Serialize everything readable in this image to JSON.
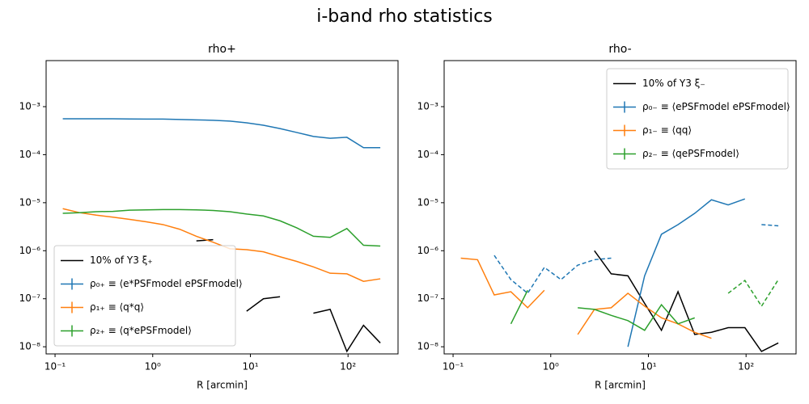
{
  "title": "i-band rho statistics",
  "chart_data": [
    {
      "type": "line",
      "title": "rho+",
      "xlabel": "R [arcmin]",
      "xscale": "log",
      "yscale": "log",
      "xlim": [
        0.081,
        325
      ],
      "ylim": [
        7.1e-09,
        0.0091
      ],
      "xticks": [
        {
          "value": 0.1,
          "label": "10⁻¹"
        },
        {
          "value": 1,
          "label": "10⁰"
        },
        {
          "value": 10,
          "label": "10¹"
        },
        {
          "value": 100,
          "label": "10²"
        }
      ],
      "yticks": [
        {
          "value": 1e-08,
          "label": "10⁻⁸"
        },
        {
          "value": 1e-07,
          "label": "10⁻⁷"
        },
        {
          "value": 1e-06,
          "label": "10⁻⁶"
        },
        {
          "value": 1e-05,
          "label": "10⁻⁵"
        },
        {
          "value": 0.0001,
          "label": "10⁻⁴"
        },
        {
          "value": 0.001,
          "label": "10⁻³"
        }
      ],
      "legend": "lower left",
      "x": [
        0.12,
        0.178,
        0.264,
        0.391,
        0.58,
        0.86,
        1.275,
        1.89,
        2.8,
        4.16,
        6.17,
        9.15,
        13.6,
        20.1,
        29.8,
        44.2,
        65.6,
        97.3,
        144,
        214
      ],
      "series": [
        {
          "name": "10% of Y3 ξ₊",
          "color": "#000000",
          "errorbar": false,
          "values": [
            null,
            null,
            null,
            null,
            null,
            null,
            null,
            null,
            1.6e-06,
            1.7e-06,
            null,
            5.5e-08,
            1e-07,
            1.1e-07,
            null,
            5e-08,
            6e-08,
            8e-09,
            2.8e-08,
            1.2e-08
          ]
        },
        {
          "name": "ρ₀₊ ≡ ⟨e*PSFmodel ePSFmodel⟩",
          "color": "#1f77b4",
          "errorbar": true,
          "values": [
            0.00056,
            0.00056,
            0.00056,
            0.00056,
            0.000555,
            0.00055,
            0.00055,
            0.00054,
            0.00053,
            0.00052,
            0.0005,
            0.00046,
            0.00041,
            0.00035,
            0.00029,
            0.00024,
            0.00022,
            0.00023,
            0.00014,
            0.00014
          ]
        },
        {
          "name": "ρ₁₊ ≡ ⟨q*q⟩",
          "color": "#ff7f0e",
          "errorbar": true,
          "values": [
            7.5e-06,
            6.2e-06,
            5.5e-06,
            5e-06,
            4.5e-06,
            4e-06,
            3.5e-06,
            2.8e-06,
            2e-06,
            1.5e-06,
            1.1e-06,
            1.05e-06,
            9.5e-07,
            7.5e-07,
            6e-07,
            4.6e-07,
            3.4e-07,
            3.3e-07,
            2.3e-07,
            2.6e-07
          ]
        },
        {
          "name": "ρ₂₊ ≡ ⟨q*ePSFmodel⟩",
          "color": "#2ca02c",
          "errorbar": true,
          "values": [
            6e-06,
            6.2e-06,
            6.5e-06,
            6.6e-06,
            7e-06,
            7.1e-06,
            7.2e-06,
            7.2e-06,
            7.1e-06,
            6.9e-06,
            6.5e-06,
            5.8e-06,
            5.3e-06,
            4.2e-06,
            3e-06,
            2e-06,
            1.9e-06,
            2.9e-06,
            1.3e-06,
            1.25e-06
          ]
        }
      ]
    },
    {
      "type": "line",
      "title": "rho-",
      "xlabel": "R [arcmin]",
      "xscale": "log",
      "yscale": "log",
      "xlim": [
        0.081,
        325
      ],
      "ylim": [
        7.1e-09,
        0.0091
      ],
      "xticks": [
        {
          "value": 0.1,
          "label": "10⁻¹"
        },
        {
          "value": 1,
          "label": "10⁰"
        },
        {
          "value": 10,
          "label": "10¹"
        },
        {
          "value": 100,
          "label": "10²"
        }
      ],
      "yticks": [
        {
          "value": 1e-08,
          "label": "10⁻⁸"
        },
        {
          "value": 1e-07,
          "label": "10⁻⁷"
        },
        {
          "value": 1e-06,
          "label": "10⁻⁶"
        },
        {
          "value": 1e-05,
          "label": "10⁻⁵"
        },
        {
          "value": 0.0001,
          "label": "10⁻⁴"
        },
        {
          "value": 0.001,
          "label": "10⁻³"
        }
      ],
      "legend": "upper right",
      "x": [
        0.12,
        0.178,
        0.264,
        0.391,
        0.58,
        0.86,
        1.275,
        1.89,
        2.8,
        4.16,
        6.17,
        9.15,
        13.6,
        20.1,
        29.8,
        44.2,
        65.6,
        97.3,
        144,
        214
      ],
      "series": [
        {
          "name": "10% of Y3 ξ₋",
          "color": "#000000",
          "errorbar": false,
          "values": [
            null,
            null,
            null,
            null,
            null,
            null,
            null,
            null,
            1e-06,
            3.3e-07,
            3e-07,
            8e-08,
            2.2e-08,
            1.4e-07,
            1.8e-08,
            2e-08,
            2.5e-08,
            2.5e-08,
            8e-09,
            1.2e-08
          ]
        },
        {
          "name": "ρ₀₋ ≡ ⟨ePSFmodel ePSFmodel⟩",
          "color": "#1f77b4",
          "errorbar": true,
          "values": [
            null,
            null,
            null,
            null,
            null,
            null,
            null,
            null,
            null,
            null,
            1e-08,
            3e-07,
            2.2e-06,
            3.5e-06,
            6e-06,
            1.15e-05,
            9e-06,
            1.2e-05,
            null,
            null
          ],
          "neg_values": [
            null,
            null,
            8e-07,
            2.5e-07,
            1.3e-07,
            4.5e-07,
            2.5e-07,
            5e-07,
            6.5e-07,
            7e-07,
            null,
            null,
            null,
            null,
            null,
            null,
            null,
            null,
            3.5e-06,
            3.3e-06
          ]
        },
        {
          "name": "ρ₁₋ ≡ ⟨qq⟩",
          "color": "#ff7f0e",
          "errorbar": true,
          "values": [
            7e-07,
            6.5e-07,
            1.2e-07,
            1.4e-07,
            6.5e-08,
            1.5e-07,
            null,
            1.8e-08,
            6e-08,
            6.5e-08,
            1.3e-07,
            7e-08,
            4e-08,
            3e-08,
            2e-08,
            1.5e-08,
            null,
            null,
            null,
            1.1e-08
          ]
        },
        {
          "name": "ρ₂₋ ≡ ⟨qePSFmodel⟩",
          "color": "#2ca02c",
          "errorbar": true,
          "values": [
            null,
            2.3e-07,
            null,
            3e-08,
            1.5e-07,
            null,
            null,
            6.5e-08,
            6e-08,
            4.5e-08,
            3.5e-08,
            2.2e-08,
            7.5e-08,
            3e-08,
            4e-08,
            null,
            null,
            null,
            null,
            null
          ],
          "neg_values": [
            null,
            null,
            null,
            null,
            null,
            null,
            null,
            null,
            null,
            null,
            null,
            null,
            null,
            null,
            null,
            null,
            1.3e-07,
            2.4e-07,
            7e-08,
            2.5e-07
          ]
        }
      ]
    }
  ]
}
